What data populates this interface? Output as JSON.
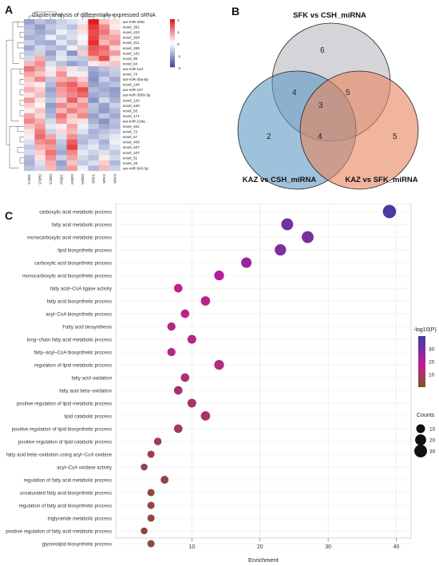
{
  "panels": {
    "a": "A",
    "b": "B",
    "c": "C"
  },
  "heatmap": {
    "title": "Cluster analysis of differentially expressed sRNA",
    "columns": [
      "CSH1",
      "CSH2",
      "CSH3",
      "HSD1",
      "HSD2",
      "HSD3",
      "SFK1",
      "SFK2",
      "SFK3"
    ],
    "rows": [
      "oar-miR-200c",
      "novel_381",
      "novel_422",
      "novel_328",
      "novel_311",
      "novel_338",
      "novel_182",
      "novel_96",
      "novel_64",
      "oar-miR-143",
      "novel_74",
      "oar-miR-30a-5p",
      "novel_144",
      "oar-miR-107",
      "oar-miR-3958-3p",
      "novel_120",
      "novel_440",
      "novel_83",
      "novel_171",
      "oar-miR-218a",
      "novel_401",
      "novel_72",
      "novel_67",
      "novel_408",
      "novel_407",
      "novel_107",
      "novel_51",
      "novel_46",
      "oar-miR-543-3p"
    ],
    "values": [
      [
        -1.2,
        -0.8,
        -1.0,
        -0.6,
        -0.4,
        -0.2,
        2.3,
        0.6,
        0.3
      ],
      [
        -0.9,
        -1.3,
        -0.7,
        -0.5,
        -0.8,
        0.4,
        2.0,
        1.2,
        0.2
      ],
      [
        -0.8,
        -1.1,
        -0.9,
        -0.2,
        -0.5,
        0.3,
        1.8,
        1.4,
        0.6
      ],
      [
        -1.0,
        -0.9,
        -0.2,
        -0.7,
        -0.4,
        -0.1,
        1.9,
        1.0,
        0.9
      ],
      [
        -0.6,
        -1.0,
        -1.1,
        -0.3,
        -0.8,
        0.2,
        2.1,
        0.7,
        1.1
      ],
      [
        -1.1,
        -0.5,
        -0.8,
        -0.9,
        -0.2,
        -0.6,
        1.7,
        1.5,
        0.4
      ],
      [
        -0.7,
        -0.6,
        -1.2,
        -0.4,
        -1.4,
        0.5,
        1.6,
        1.3,
        1.0
      ],
      [
        -0.5,
        0.8,
        -0.9,
        -0.3,
        -0.6,
        -0.7,
        0.9,
        1.8,
        0.3
      ],
      [
        0.7,
        1.1,
        -0.4,
        -0.8,
        -1.2,
        -0.9,
        0.2,
        0.4,
        0.6
      ],
      [
        1.4,
        0.9,
        -0.2,
        0.6,
        0.3,
        -0.5,
        -1.1,
        -0.8,
        -0.6
      ],
      [
        0.9,
        0.6,
        0.3,
        1.1,
        -0.2,
        0.2,
        -1.3,
        -1.0,
        -0.7
      ],
      [
        0.6,
        1.2,
        -0.7,
        0.8,
        1.0,
        0.5,
        -1.4,
        -0.6,
        -1.1
      ],
      [
        0.4,
        0.2,
        -0.9,
        1.3,
        1.6,
        0.9,
        -1.2,
        -1.0,
        -0.8
      ],
      [
        0.8,
        0.5,
        -1.2,
        1.0,
        1.4,
        1.8,
        -0.9,
        -1.1,
        -1.3
      ],
      [
        0.3,
        0.7,
        -1.0,
        0.9,
        1.2,
        1.5,
        -1.1,
        -0.9,
        -1.2
      ],
      [
        1.0,
        0.3,
        -0.8,
        0.5,
        1.6,
        0.7,
        -1.4,
        -0.5,
        -1.0
      ],
      [
        0.5,
        0.1,
        -1.3,
        1.2,
        0.8,
        1.1,
        -0.8,
        -1.2,
        -0.6
      ],
      [
        0.2,
        0.6,
        -1.1,
        0.7,
        1.3,
        0.9,
        -0.9,
        -1.3,
        -0.9
      ],
      [
        0.9,
        0.4,
        -0.9,
        1.4,
        0.6,
        1.2,
        -1.2,
        -0.7,
        -1.1
      ],
      [
        1.2,
        0.8,
        -0.5,
        1.0,
        0.4,
        0.3,
        -1.0,
        -1.4,
        -0.8
      ],
      [
        0.6,
        1.0,
        -0.3,
        0.2,
        0.9,
        -0.2,
        -0.7,
        -1.1,
        -0.9
      ],
      [
        0.3,
        1.3,
        -0.6,
        0.4,
        0.7,
        -0.4,
        -1.0,
        -0.8,
        -0.6
      ],
      [
        -0.2,
        1.5,
        0.9,
        -0.4,
        1.1,
        -0.8,
        -0.9,
        -0.6,
        -0.3
      ],
      [
        -0.4,
        1.1,
        1.3,
        -0.7,
        1.6,
        -0.9,
        -0.5,
        -1.0,
        -0.2
      ],
      [
        -0.7,
        0.8,
        1.0,
        -0.9,
        1.9,
        -0.6,
        -0.3,
        -0.8,
        -0.4
      ],
      [
        -0.5,
        0.5,
        1.4,
        -1.1,
        1.2,
        -0.3,
        -0.6,
        -0.4,
        -0.7
      ],
      [
        -0.9,
        0.3,
        1.1,
        -0.6,
        0.9,
        -0.5,
        -0.8,
        0.2,
        -0.5
      ],
      [
        -1.0,
        -0.4,
        0.8,
        -1.2,
        0.6,
        -0.7,
        -0.4,
        0.5,
        -0.9
      ],
      [
        -0.8,
        -0.6,
        0.7,
        -1.0,
        1.0,
        -0.2,
        -0.9,
        0.7,
        -0.6
      ]
    ],
    "colorbar_ticks": [
      "2",
      "1",
      "0",
      "-1",
      "-2"
    ],
    "colors": {
      "high": "#e41a1c",
      "mid": "#ffffff",
      "low": "#3a4fa0"
    }
  },
  "venn": {
    "labels": {
      "top": "SFK vs CSH_miRNA",
      "left": "KAZ vs CSH_miRNA",
      "right": "KAZ vs SFK_miRNA"
    },
    "counts": {
      "top_only": "6",
      "left_only": "2",
      "right_only": "5",
      "top_left": "4",
      "top_right": "5",
      "left_right": "4",
      "all": "3"
    },
    "colors": {
      "top": "#b9b9bf",
      "left": "#5e9ac4",
      "right": "#e8845e"
    }
  },
  "chart_data": {
    "type": "scatter",
    "xlabel": "Enrichment",
    "ylabel": "",
    "xlim": [
      0,
      41
    ],
    "xticks": [
      10,
      20,
      30,
      40
    ],
    "categories": [
      "carboxylic acid metabolic process",
      "fatty acid metabolic process",
      "monocarboxylic acid metabolic process",
      "lipid biosynthetic process",
      "carboxylic acid biosynthetic process",
      "monocarboxylic acid biosynthetic process",
      "fatty acid–CoA ligase activity",
      "fatty acid biosynthetic process",
      "acyl–CoA biosynthetic process",
      "Fatty acid biosynthesis",
      "long–chain fatty acid metabolic process",
      "fatty–acyl–CoA biosynthetic process",
      "regulation of lipid metabolic process",
      "fatty acid oxidation",
      "fatty acid beta–oxidation",
      "positive regulation of lipid metabolic process",
      "lipid catabolic process",
      "positive regulation of lipid biosynthetic process",
      "positive regulation of lipid catabolic process",
      "fatty acid beta–oxidation using acyl–CoA oxidase",
      "acyl–CoA oxidase activity",
      "regulation of fatty acid metabolic process",
      "unsaturated fatty acid biosynthetic process",
      "regulation of fatty acid biosynthetic process",
      "triglyceride metabolic process",
      "positive regulation of fatty acid metabolic process",
      "glycerolipid biosynthetic process"
    ],
    "enrichment": [
      39,
      24,
      27,
      23,
      18,
      14,
      8,
      12,
      9,
      7,
      10,
      7,
      14,
      9,
      8,
      10,
      12,
      8,
      5,
      4,
      3,
      6,
      4,
      4,
      4,
      3,
      4
    ],
    "counts": [
      34,
      25,
      25,
      22,
      17,
      14,
      9,
      12,
      9,
      8,
      10,
      8,
      14,
      9,
      9,
      10,
      12,
      9,
      6,
      5,
      4,
      7,
      5,
      5,
      5,
      4,
      5
    ],
    "neg_log10_p": [
      38,
      31,
      30,
      29,
      25,
      21,
      17,
      16,
      16,
      14,
      14,
      14,
      13,
      12,
      12,
      11,
      11,
      10,
      8,
      7,
      6,
      6,
      6,
      6,
      5,
      5,
      5
    ],
    "color_legend": {
      "title": "-log10(P)",
      "ticks": [
        "30",
        "20",
        "10"
      ],
      "range": [
        0,
        40
      ],
      "high": "#3b3fa0",
      "mid": "#c41a9a",
      "low": "#7a5a1e"
    },
    "size_legend": {
      "title": "Counts",
      "values": [
        10,
        20,
        30
      ],
      "labels": [
        "10",
        "20",
        "30"
      ]
    }
  }
}
